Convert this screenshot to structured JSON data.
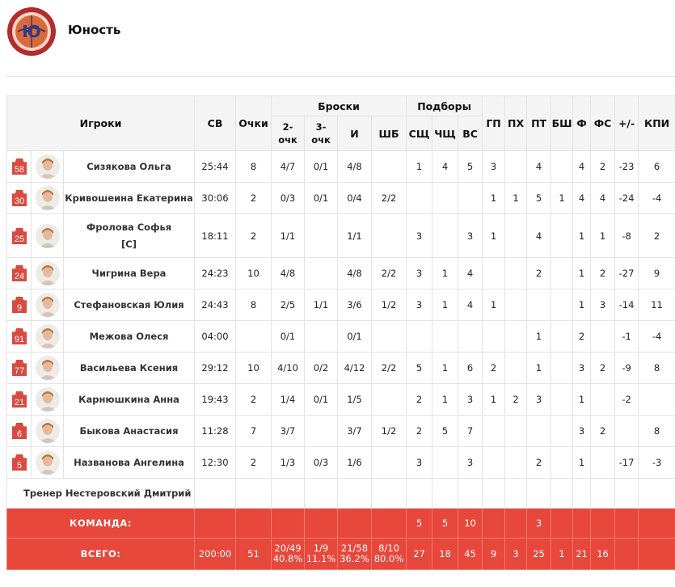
{
  "team": {
    "name": "Юность",
    "logo_text": "БК \"ЮНОСТЬ\" ВОЛЖСКАЯ ОБЛАСТЬ"
  },
  "colors": {
    "accent": "#e8473b",
    "jersey": "#d94a40",
    "header_bg": "#f4f4f4"
  },
  "headers": {
    "players": "Игроки",
    "sv": "СВ",
    "points": "Очки",
    "shots": "Броски",
    "rebounds": "Подборы",
    "two_a": "2-",
    "two_b": "очк",
    "three_a": "3-",
    "three_b": "очк",
    "i": "И",
    "shb": "ШБ",
    "sshch": "СЩ",
    "chshch": "ЧЩ",
    "vs": "ВС",
    "gp": "ГП",
    "ph": "ПХ",
    "pt": "ПТ",
    "bsh": "БШ",
    "f": "Ф",
    "fs": "ФС",
    "pm": "+/-",
    "kpi": "КПИ"
  },
  "players": [
    {
      "num": "58",
      "name": "Сизякова Ольга",
      "cap": "",
      "sv": "25:44",
      "pts": "8",
      "two": "4/7",
      "three": "0/1",
      "i": "4/8",
      "shb": "",
      "sshch": "1",
      "chshch": "4",
      "vs": "5",
      "gp": "3",
      "ph": "",
      "pt": "4",
      "bsh": "",
      "f": "4",
      "fs": "2",
      "pm": "-23",
      "kpi": "6"
    },
    {
      "num": "30",
      "name": "Кривошеина Екатерина",
      "cap": "",
      "sv": "30:06",
      "pts": "2",
      "two": "0/3",
      "three": "0/1",
      "i": "0/4",
      "shb": "2/2",
      "sshch": "",
      "chshch": "",
      "vs": "",
      "gp": "1",
      "ph": "1",
      "pt": "5",
      "bsh": "1",
      "f": "4",
      "fs": "4",
      "pm": "-24",
      "kpi": "-4"
    },
    {
      "num": "25",
      "name": "Фролова Софья",
      "cap": "[C]",
      "sv": "18:11",
      "pts": "2",
      "two": "1/1",
      "three": "",
      "i": "1/1",
      "shb": "",
      "sshch": "3",
      "chshch": "",
      "vs": "3",
      "gp": "1",
      "ph": "",
      "pt": "4",
      "bsh": "",
      "f": "1",
      "fs": "1",
      "pm": "-8",
      "kpi": "2"
    },
    {
      "num": "24",
      "name": "Чигрина Вера",
      "cap": "",
      "sv": "24:23",
      "pts": "10",
      "two": "4/8",
      "three": "",
      "i": "4/8",
      "shb": "2/2",
      "sshch": "3",
      "chshch": "1",
      "vs": "4",
      "gp": "",
      "ph": "",
      "pt": "2",
      "bsh": "",
      "f": "1",
      "fs": "2",
      "pm": "-27",
      "kpi": "9"
    },
    {
      "num": "9",
      "name": "Стефановская Юлия",
      "cap": "",
      "sv": "24:43",
      "pts": "8",
      "two": "2/5",
      "three": "1/1",
      "i": "3/6",
      "shb": "1/2",
      "sshch": "3",
      "chshch": "1",
      "vs": "4",
      "gp": "1",
      "ph": "",
      "pt": "",
      "bsh": "",
      "f": "1",
      "fs": "3",
      "pm": "-14",
      "kpi": "11"
    },
    {
      "num": "91",
      "name": "Межова Олеся",
      "cap": "",
      "sv": "04:00",
      "pts": "",
      "two": "0/1",
      "three": "",
      "i": "0/1",
      "shb": "",
      "sshch": "",
      "chshch": "",
      "vs": "",
      "gp": "",
      "ph": "",
      "pt": "1",
      "bsh": "",
      "f": "2",
      "fs": "",
      "pm": "-1",
      "kpi": "-4"
    },
    {
      "num": "77",
      "name": "Васильева Ксения",
      "cap": "",
      "sv": "29:12",
      "pts": "10",
      "two": "4/10",
      "three": "0/2",
      "i": "4/12",
      "shb": "2/2",
      "sshch": "5",
      "chshch": "1",
      "vs": "6",
      "gp": "2",
      "ph": "",
      "pt": "1",
      "bsh": "",
      "f": "3",
      "fs": "2",
      "pm": "-9",
      "kpi": "8"
    },
    {
      "num": "21",
      "name": "Карнюшкина Анна",
      "cap": "",
      "sv": "19:43",
      "pts": "2",
      "two": "1/4",
      "three": "0/1",
      "i": "1/5",
      "shb": "",
      "sshch": "2",
      "chshch": "1",
      "vs": "3",
      "gp": "1",
      "ph": "2",
      "pt": "3",
      "bsh": "",
      "f": "1",
      "fs": "",
      "pm": "-2",
      "kpi": ""
    },
    {
      "num": "6",
      "name": "Быкова Анастасия",
      "cap": "",
      "sv": "11:28",
      "pts": "7",
      "two": "3/7",
      "three": "",
      "i": "3/7",
      "shb": "1/2",
      "sshch": "2",
      "chshch": "5",
      "vs": "7",
      "gp": "",
      "ph": "",
      "pt": "",
      "bsh": "",
      "f": "3",
      "fs": "2",
      "pm": "",
      "kpi": "8"
    },
    {
      "num": "5",
      "name": "Названова Ангелина",
      "cap": "",
      "sv": "12:30",
      "pts": "2",
      "two": "1/3",
      "three": "0/3",
      "i": "1/6",
      "shb": "",
      "sshch": "3",
      "chshch": "",
      "vs": "3",
      "gp": "",
      "ph": "",
      "pt": "2",
      "bsh": "",
      "f": "1",
      "fs": "",
      "pm": "-17",
      "kpi": "-3"
    }
  ],
  "coach": "Тренер Нестеровский Дмитрий",
  "team_row": {
    "label": "КОМАНДА:",
    "sshch": "5",
    "chshch": "5",
    "vs": "10",
    "pt": "3"
  },
  "total_row": {
    "label": "ВСЕГО:",
    "sv": "200:00",
    "pts": "51",
    "two_a": "20/49",
    "two_b": "40.8%",
    "three_a": "1/9",
    "three_b": "11.1%",
    "i_a": "21/58",
    "i_b": "36.2%",
    "shb_a": "8/10",
    "shb_b": "80.0%",
    "sshch": "27",
    "chshch": "18",
    "vs": "45",
    "gp": "9",
    "ph": "3",
    "pt": "25",
    "bsh": "1",
    "f": "21",
    "fs": "16"
  }
}
